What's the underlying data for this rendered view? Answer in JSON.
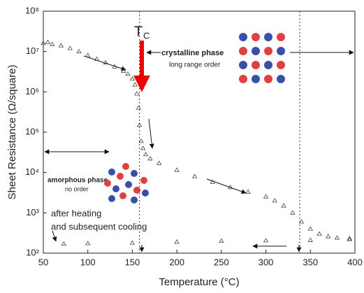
{
  "chart_data": {
    "type": "scatter",
    "xlabel": "Temperature (°C)",
    "ylabel": "Sheet Resistance (Ω/square)",
    "xlim": [
      50,
      400
    ],
    "xticks": [
      50,
      100,
      150,
      200,
      250,
      300,
      350,
      400
    ],
    "ylim": [
      100,
      100000000
    ],
    "log_y": true,
    "yticks": [
      {
        "value": 100,
        "label": "10²"
      },
      {
        "value": 1000,
        "label": "10³"
      },
      {
        "value": 10000,
        "label": "10⁴"
      },
      {
        "value": 100000,
        "label": "10⁵"
      },
      {
        "value": 1000000,
        "label": "10⁶"
      },
      {
        "value": 10000000,
        "label": "10⁷"
      },
      {
        "value": 100000000,
        "label": "10⁸"
      }
    ],
    "vlines": [
      158,
      338
    ],
    "series": [
      {
        "color": "#444444",
        "x": [
          50,
          55,
          60,
          70,
          80,
          90,
          100,
          110,
          120,
          130,
          140,
          145,
          150,
          153,
          155,
          157,
          158,
          160,
          162,
          165,
          170,
          180,
          200,
          220,
          240,
          260,
          280,
          300,
          310,
          320,
          330,
          340,
          350,
          360,
          370,
          380,
          394
        ],
        "values": [
          16000000,
          17000000,
          15000000,
          14000000,
          12000000,
          10000000,
          8000000,
          6500000,
          5300000,
          4200000,
          3300000,
          2800000,
          2100000,
          1500000,
          900000,
          400000,
          150000,
          60000,
          40000,
          28000,
          22000,
          17000,
          11500,
          8000,
          5800,
          4300,
          3300,
          2500,
          2000,
          1500,
          1000,
          600,
          400,
          300,
          260,
          240,
          230
        ]
      },
      {
        "color": "#444444",
        "x": [
          73,
          100,
          150,
          200,
          250,
          300,
          350,
          394
        ],
        "values": [
          170,
          175,
          180,
          190,
          200,
          205,
          210,
          220
        ]
      }
    ],
    "annotations": {
      "tc": "T",
      "tc_sub": "C",
      "crystalline": "crystalline phase",
      "crystalline_sub": "long range order",
      "amorphous": "amorphous phase",
      "amorphous_sub": "no order",
      "cooling1": "after heating",
      "cooling2": "and subsequent cooling"
    }
  }
}
